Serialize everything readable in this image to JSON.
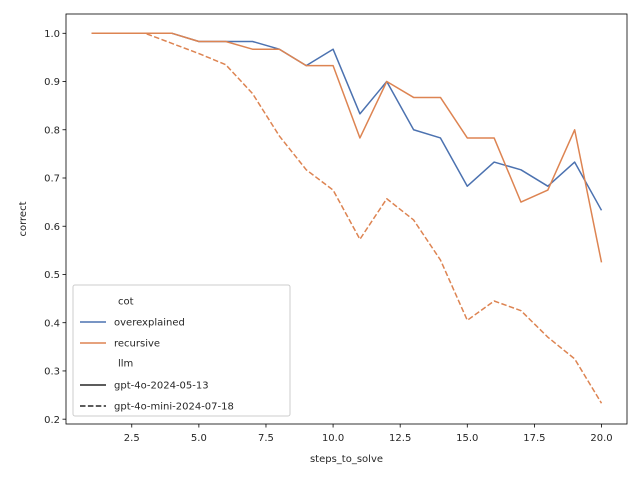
{
  "chart_data": {
    "type": "line",
    "xlabel": "steps_to_solve",
    "ylabel": "correct",
    "xlim": [
      0.05,
      20.95
    ],
    "ylim": [
      0.19,
      1.04
    ],
    "x_ticks": [
      2.5,
      5.0,
      7.5,
      10.0,
      12.5,
      15.0,
      17.5,
      20.0
    ],
    "x_tick_labels": [
      "2.5",
      "5.0",
      "7.5",
      "10.0",
      "12.5",
      "15.0",
      "17.5",
      "20.0"
    ],
    "y_ticks": [
      0.2,
      0.3,
      0.4,
      0.5,
      0.6,
      0.7,
      0.8,
      0.9,
      1.0
    ],
    "y_tick_labels": [
      "0.2",
      "0.3",
      "0.4",
      "0.5",
      "0.6",
      "0.7",
      "0.8",
      "0.9",
      "1.0"
    ],
    "grid": false,
    "legend_position": "lower-left",
    "legend": {
      "cot_title": "cot",
      "llm_title": "llm",
      "cot_entries": [
        {
          "label": "overexplained",
          "color": "#4c72b0"
        },
        {
          "label": "recursive",
          "color": "#dd8452"
        }
      ],
      "llm_entries": [
        {
          "label": "gpt-4o-2024-05-13",
          "style": "solid"
        },
        {
          "label": "gpt-4o-mini-2024-07-18",
          "style": "dashed"
        }
      ]
    },
    "x": [
      1,
      2,
      3,
      4,
      5,
      6,
      7,
      8,
      9,
      10,
      11,
      12,
      13,
      14,
      15,
      16,
      17,
      18,
      19,
      20
    ],
    "series": [
      {
        "name": "overexplained",
        "llm": "gpt-4o-2024-05-13",
        "color": "#4c72b0",
        "style": "solid",
        "values": [
          1.0,
          1.0,
          1.0,
          1.0,
          0.983,
          0.983,
          0.983,
          0.967,
          0.933,
          0.967,
          0.833,
          0.9,
          0.8,
          0.783,
          0.683,
          0.733,
          0.717,
          0.683,
          0.733,
          0.633
        ]
      },
      {
        "name": "recursive",
        "llm": "gpt-4o-2024-05-13",
        "color": "#dd8452",
        "style": "solid",
        "values": [
          1.0,
          1.0,
          1.0,
          1.0,
          0.983,
          0.983,
          0.967,
          0.967,
          0.933,
          0.933,
          0.783,
          0.9,
          0.867,
          0.867,
          0.783,
          0.783,
          0.65,
          0.675,
          0.8,
          0.525
        ]
      },
      {
        "name": "recursive",
        "llm": "gpt-4o-mini-2024-07-18",
        "color": "#dd8452",
        "style": "dashed",
        "values": [
          1.0,
          1.0,
          1.0,
          0.979,
          0.958,
          0.935,
          0.875,
          0.787,
          0.717,
          0.675,
          0.573,
          0.657,
          0.613,
          0.53,
          0.405,
          0.445,
          0.425,
          0.37,
          0.325,
          0.233
        ]
      }
    ]
  }
}
